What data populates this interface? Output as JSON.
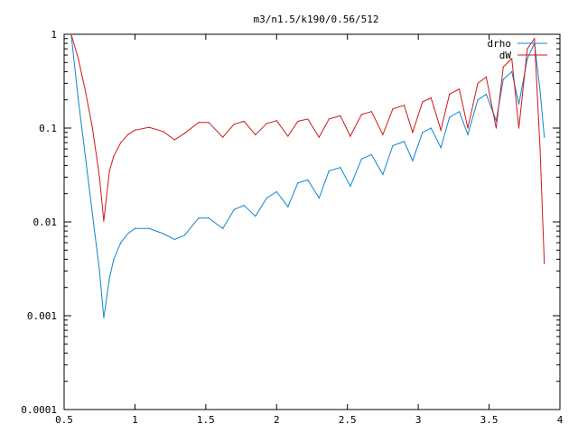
{
  "chart_data": {
    "type": "line",
    "title": "m3/n1.5/k190/0.56/512",
    "xlabel": "",
    "ylabel": "",
    "xlim": [
      0.5,
      4.0
    ],
    "ylim": [
      0.0001,
      1
    ],
    "yscale": "log",
    "grid": false,
    "legend_position": "top-right",
    "x_ticks": [
      "0.5",
      "1",
      "1.5",
      "2",
      "2.5",
      "3",
      "3.5",
      "4"
    ],
    "y_ticks": [
      "0.0001",
      "0.001",
      "0.01",
      "0.1",
      "1"
    ],
    "series": [
      {
        "name": "drho",
        "color": "#0f85cf",
        "x": [
          0.55,
          0.6,
          0.65,
          0.7,
          0.75,
          0.78,
          0.82,
          0.85,
          0.9,
          0.95,
          1.0,
          1.1,
          1.2,
          1.28,
          1.35,
          1.45,
          1.52,
          1.62,
          1.7,
          1.77,
          1.85,
          1.93,
          2.0,
          2.08,
          2.15,
          2.22,
          2.3,
          2.37,
          2.45,
          2.52,
          2.6,
          2.67,
          2.75,
          2.82,
          2.9,
          2.96,
          3.03,
          3.09,
          3.16,
          3.22,
          3.29,
          3.35,
          3.42,
          3.48,
          3.55,
          3.6,
          3.66,
          3.71,
          3.77,
          3.82,
          3.86,
          3.89
        ],
        "y": [
          1.0,
          0.2,
          0.05,
          0.012,
          0.003,
          0.00095,
          0.0025,
          0.004,
          0.006,
          0.0075,
          0.0085,
          0.0085,
          0.0075,
          0.0065,
          0.0072,
          0.011,
          0.011,
          0.0085,
          0.0135,
          0.015,
          0.0115,
          0.018,
          0.021,
          0.0145,
          0.026,
          0.028,
          0.018,
          0.035,
          0.038,
          0.024,
          0.047,
          0.052,
          0.032,
          0.065,
          0.072,
          0.045,
          0.09,
          0.1,
          0.062,
          0.13,
          0.15,
          0.085,
          0.2,
          0.23,
          0.12,
          0.33,
          0.4,
          0.18,
          0.55,
          0.8,
          0.25,
          0.08
        ]
      },
      {
        "name": "dW",
        "color": "#d01818",
        "x": [
          0.55,
          0.6,
          0.65,
          0.7,
          0.75,
          0.78,
          0.82,
          0.85,
          0.9,
          0.95,
          1.0,
          1.1,
          1.2,
          1.28,
          1.35,
          1.45,
          1.52,
          1.62,
          1.7,
          1.77,
          1.85,
          1.93,
          2.0,
          2.08,
          2.15,
          2.22,
          2.3,
          2.37,
          2.45,
          2.52,
          2.6,
          2.67,
          2.75,
          2.82,
          2.9,
          2.96,
          3.03,
          3.09,
          3.16,
          3.22,
          3.29,
          3.35,
          3.42,
          3.48,
          3.55,
          3.6,
          3.66,
          3.71,
          3.77,
          3.82,
          3.86,
          3.89
        ],
        "y": [
          1.0,
          0.55,
          0.25,
          0.1,
          0.03,
          0.0102,
          0.035,
          0.05,
          0.07,
          0.085,
          0.095,
          0.102,
          0.092,
          0.075,
          0.088,
          0.115,
          0.115,
          0.08,
          0.11,
          0.118,
          0.085,
          0.112,
          0.12,
          0.082,
          0.118,
          0.125,
          0.08,
          0.125,
          0.135,
          0.082,
          0.14,
          0.15,
          0.085,
          0.16,
          0.175,
          0.09,
          0.19,
          0.21,
          0.095,
          0.23,
          0.26,
          0.1,
          0.3,
          0.35,
          0.1,
          0.45,
          0.55,
          0.1,
          0.7,
          0.9,
          0.06,
          0.0036
        ]
      }
    ]
  }
}
